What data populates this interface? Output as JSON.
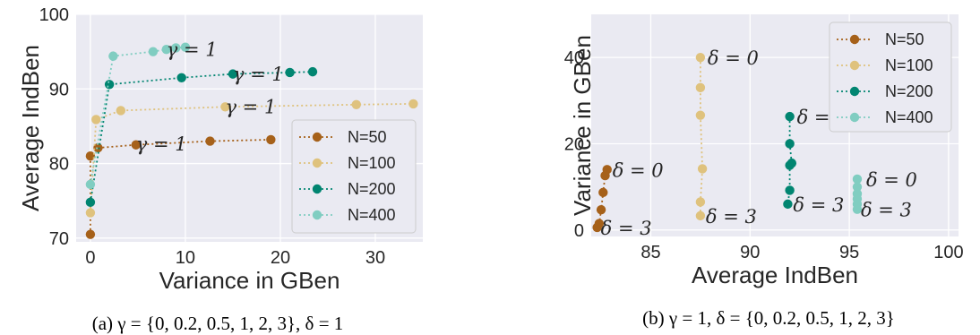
{
  "chart_data": [
    {
      "type": "line",
      "xlabel": "Variance in GBen",
      "ylabel": "Average IndBen",
      "xlim": [
        -1.5,
        35
      ],
      "ylim": [
        69.5,
        100
      ],
      "xticks": [
        "0",
        "10",
        "20",
        "30"
      ],
      "yticks": [
        "70",
        "80",
        "90",
        "100"
      ],
      "grid": true,
      "legend_position": "lower-right",
      "caption": "(a) γ = {0, 0.2, 0.5, 1, 2, 3}, δ = 1",
      "series": [
        {
          "name": "N=50",
          "color": "#a6611a",
          "x": [
            0.0,
            0.0,
            0.8,
            4.8,
            12.6,
            19.0
          ],
          "y": [
            70.5,
            81.0,
            82.1,
            82.5,
            83.0,
            83.2
          ]
        },
        {
          "name": "N=100",
          "color": "#dfc27d",
          "x": [
            0.0,
            0.6,
            3.2,
            14.2,
            28.0,
            34.0
          ],
          "y": [
            73.4,
            85.9,
            87.1,
            87.6,
            87.9,
            88.0
          ]
        },
        {
          "name": "N=200",
          "color": "#018571",
          "x": [
            0.0,
            2.0,
            9.6,
            15.0,
            21.0,
            23.4
          ],
          "y": [
            74.8,
            90.6,
            91.5,
            92.0,
            92.2,
            92.3
          ]
        },
        {
          "name": "N=400",
          "color": "#80cdc1",
          "x": [
            0.0,
            2.4,
            6.6,
            8.0,
            9.0,
            10.0
          ],
          "y": [
            77.2,
            94.4,
            95.0,
            95.3,
            95.5,
            95.6
          ]
        }
      ],
      "annotations": [
        {
          "text": "γ = 1",
          "x": 4.8,
          "y": 82.7
        },
        {
          "text": "γ = 1",
          "x": 14.2,
          "y": 87.7
        },
        {
          "text": "γ = 1",
          "x": 15.0,
          "y": 92.1
        },
        {
          "text": "γ = 1",
          "x": 8.0,
          "y": 95.4
        }
      ]
    },
    {
      "type": "line",
      "xlabel": "Average IndBen",
      "ylabel": "Variance in GBen",
      "xlim": [
        82,
        100.5
      ],
      "ylim": [
        -1.5,
        50
      ],
      "xticks": [
        "85",
        "90",
        "95",
        "100"
      ],
      "yticks": [
        "0",
        "20",
        "40"
      ],
      "grid": true,
      "legend_position": "upper-right",
      "caption": "(b) γ = 1, δ = {0, 0.2, 0.5, 1, 2, 3}",
      "series": [
        {
          "name": "N=50",
          "color": "#a6611a",
          "x": [
            82.8,
            82.7,
            82.6,
            82.5,
            82.4,
            82.3
          ],
          "y": [
            14.0,
            12.6,
            8.7,
            4.7,
            1.5,
            0.6
          ]
        },
        {
          "name": "N=100",
          "color": "#dfc27d",
          "x": [
            87.5,
            87.5,
            87.5,
            87.6,
            87.5,
            87.5
          ],
          "y": [
            40.0,
            33.0,
            26.6,
            14.2,
            6.5,
            3.3
          ]
        },
        {
          "name": "N=200",
          "color": "#018571",
          "x": [
            92.0,
            92.0,
            92.1,
            92.0,
            92.0,
            91.9
          ],
          "y": [
            26.3,
            20.0,
            15.5,
            15.0,
            9.2,
            6.0
          ]
        },
        {
          "name": "N=400",
          "color": "#80cdc1",
          "x": [
            95.4,
            95.4,
            95.4,
            95.4,
            95.4,
            95.4
          ],
          "y": [
            11.8,
            10.0,
            8.4,
            7.2,
            6.0,
            4.8
          ]
        }
      ],
      "annotations": [
        {
          "text": "δ = 0",
          "x": 82.8,
          "y": 14.0
        },
        {
          "text": "δ = 3",
          "x": 82.3,
          "y": 0.6
        },
        {
          "text": "δ = 0",
          "x": 87.5,
          "y": 40.0
        },
        {
          "text": "δ = 3",
          "x": 87.5,
          "y": 3.3
        },
        {
          "text": "δ = 0",
          "x": 92.0,
          "y": 26.3
        },
        {
          "text": "δ = 3",
          "x": 91.9,
          "y": 6.0
        },
        {
          "text": "δ = 0",
          "x": 95.4,
          "y": 11.8
        },
        {
          "text": "δ = 3",
          "x": 95.4,
          "y": 4.8
        }
      ]
    }
  ]
}
